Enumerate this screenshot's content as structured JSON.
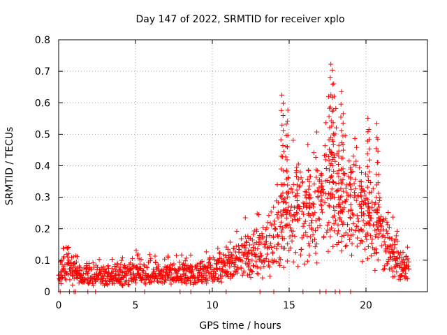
{
  "chart_data": {
    "type": "scatter",
    "title": "Day 147 of 2022, SRMTID for receiver xplo",
    "xlabel": "GPS time / hours",
    "ylabel": "SRMTID / TECUs",
    "xlim": [
      0,
      24
    ],
    "ylim": [
      0,
      0.8
    ],
    "xticks": [
      0,
      5,
      10,
      15,
      20
    ],
    "yticks": [
      0,
      0.1,
      0.2,
      0.3,
      0.4,
      0.5,
      0.6,
      0.7,
      0.8
    ],
    "xtick_labels": [
      "0",
      "5",
      "10",
      "15",
      "20"
    ],
    "ytick_labels": [
      "0",
      "0.1",
      "0.2",
      "0.3",
      "0.4",
      "0.5",
      "0.6",
      "0.7",
      "0.8"
    ],
    "grid": true,
    "marker": "+",
    "color": "#ff0000",
    "series": [
      {
        "name": "SRMTID",
        "envelope": [
          [
            0.0,
            0.06
          ],
          [
            0.5,
            0.08
          ],
          [
            1.0,
            0.06
          ],
          [
            2.0,
            0.05
          ],
          [
            3.0,
            0.05
          ],
          [
            4.0,
            0.055
          ],
          [
            5.0,
            0.06
          ],
          [
            6.0,
            0.06
          ],
          [
            7.0,
            0.055
          ],
          [
            8.0,
            0.06
          ],
          [
            9.0,
            0.06
          ],
          [
            10.0,
            0.065
          ],
          [
            11.0,
            0.08
          ],
          [
            12.0,
            0.1
          ],
          [
            13.0,
            0.12
          ],
          [
            13.5,
            0.14
          ],
          [
            14.0,
            0.17
          ],
          [
            14.5,
            0.2
          ],
          [
            15.0,
            0.22
          ],
          [
            15.5,
            0.23
          ],
          [
            16.0,
            0.24
          ],
          [
            16.5,
            0.26
          ],
          [
            17.0,
            0.25
          ],
          [
            17.5,
            0.32
          ],
          [
            18.0,
            0.3
          ],
          [
            18.5,
            0.25
          ],
          [
            19.0,
            0.3
          ],
          [
            19.5,
            0.25
          ],
          [
            20.0,
            0.22
          ],
          [
            20.5,
            0.2
          ],
          [
            21.0,
            0.15
          ],
          [
            21.5,
            0.13
          ],
          [
            22.0,
            0.1
          ],
          [
            22.5,
            0.07
          ],
          [
            22.8,
            0.07
          ]
        ],
        "peaks": [
          [
            14.5,
            0.62
          ],
          [
            14.6,
            0.6
          ],
          [
            14.9,
            0.58
          ],
          [
            14.8,
            0.53
          ],
          [
            15.5,
            0.4
          ],
          [
            16.3,
            0.38
          ],
          [
            17.1,
            0.38
          ],
          [
            17.6,
            0.62
          ],
          [
            17.7,
            0.72
          ],
          [
            17.8,
            0.7
          ],
          [
            17.9,
            0.66
          ],
          [
            18.4,
            0.64
          ],
          [
            18.5,
            0.57
          ],
          [
            18.2,
            0.47
          ],
          [
            19.0,
            0.4
          ],
          [
            20.1,
            0.55
          ],
          [
            20.2,
            0.52
          ],
          [
            20.7,
            0.53
          ],
          [
            20.8,
            0.48
          ],
          [
            19.7,
            0.35
          ]
        ],
        "zeros": [
          0.1,
          0.7,
          1.0,
          1.1,
          1.9,
          2.4,
          5.6,
          7.9,
          8.6,
          9.8,
          10.9,
          13.1,
          14.0,
          15.9,
          17.0,
          17.4,
          18.0,
          18.3,
          19.0
        ]
      }
    ]
  }
}
